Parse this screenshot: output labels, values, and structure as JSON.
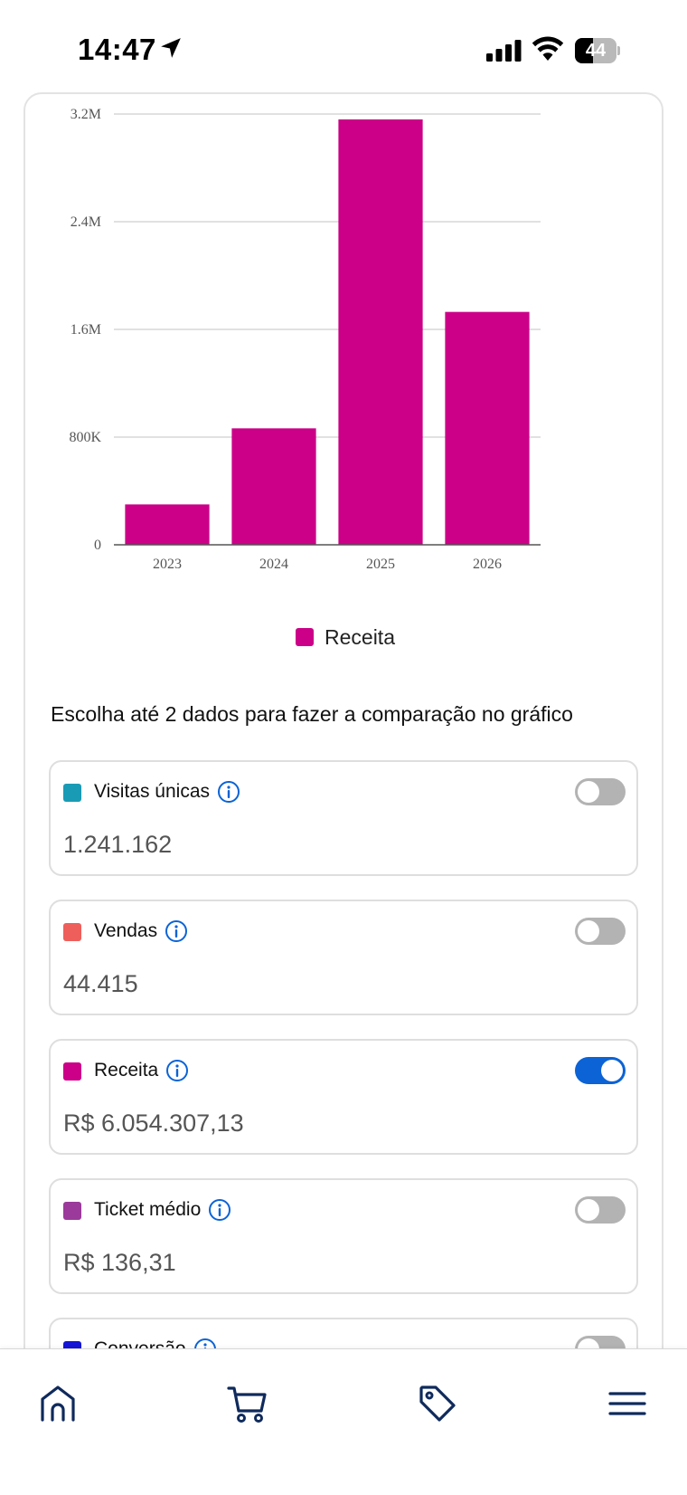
{
  "status_bar": {
    "time": "14:47",
    "battery_percent": "44",
    "icons": [
      "location-arrow-icon",
      "cellular-signal-icon",
      "wifi-icon",
      "battery-icon"
    ]
  },
  "chart_data": {
    "type": "bar",
    "categories": [
      "2023",
      "2024",
      "2025",
      "2026"
    ],
    "series": [
      {
        "name": "Receita",
        "values": [
          300000,
          865000,
          3160000,
          1730000
        ],
        "color": "#cc0088"
      }
    ],
    "ylim": [
      0,
      3200000
    ],
    "y_ticks": [
      0,
      800000,
      1600000,
      2400000,
      3200000
    ],
    "y_tick_labels": [
      "0",
      "800K",
      "1.6M",
      "2.4M",
      "3.2M"
    ],
    "grid": true,
    "legend_position": "bottom-center"
  },
  "compare_prompt": "Escolha até 2 dados para fazer a comparação no gráfico",
  "metrics": [
    {
      "label": "Visitas únicas",
      "value": "1.241.162",
      "color": "#1a9bb5",
      "enabled": false
    },
    {
      "label": "Vendas",
      "value": "44.415",
      "color": "#ee5f5b",
      "enabled": false
    },
    {
      "label": "Receita",
      "value": "R$ 6.054.307,13",
      "color": "#cc0088",
      "enabled": true
    },
    {
      "label": "Ticket médio",
      "value": "R$ 136,31",
      "color": "#9b3a9b",
      "enabled": false
    },
    {
      "label": "Conversão",
      "value": "",
      "color": "#1414d6",
      "enabled": false
    }
  ],
  "colors": {
    "accent": "#0b63d6",
    "nav_icon": "#0f2a5c",
    "toggle_off": "#b3b3b3"
  },
  "bottom_nav": {
    "items": [
      "home-icon",
      "cart-icon",
      "tag-icon",
      "menu-icon"
    ]
  }
}
